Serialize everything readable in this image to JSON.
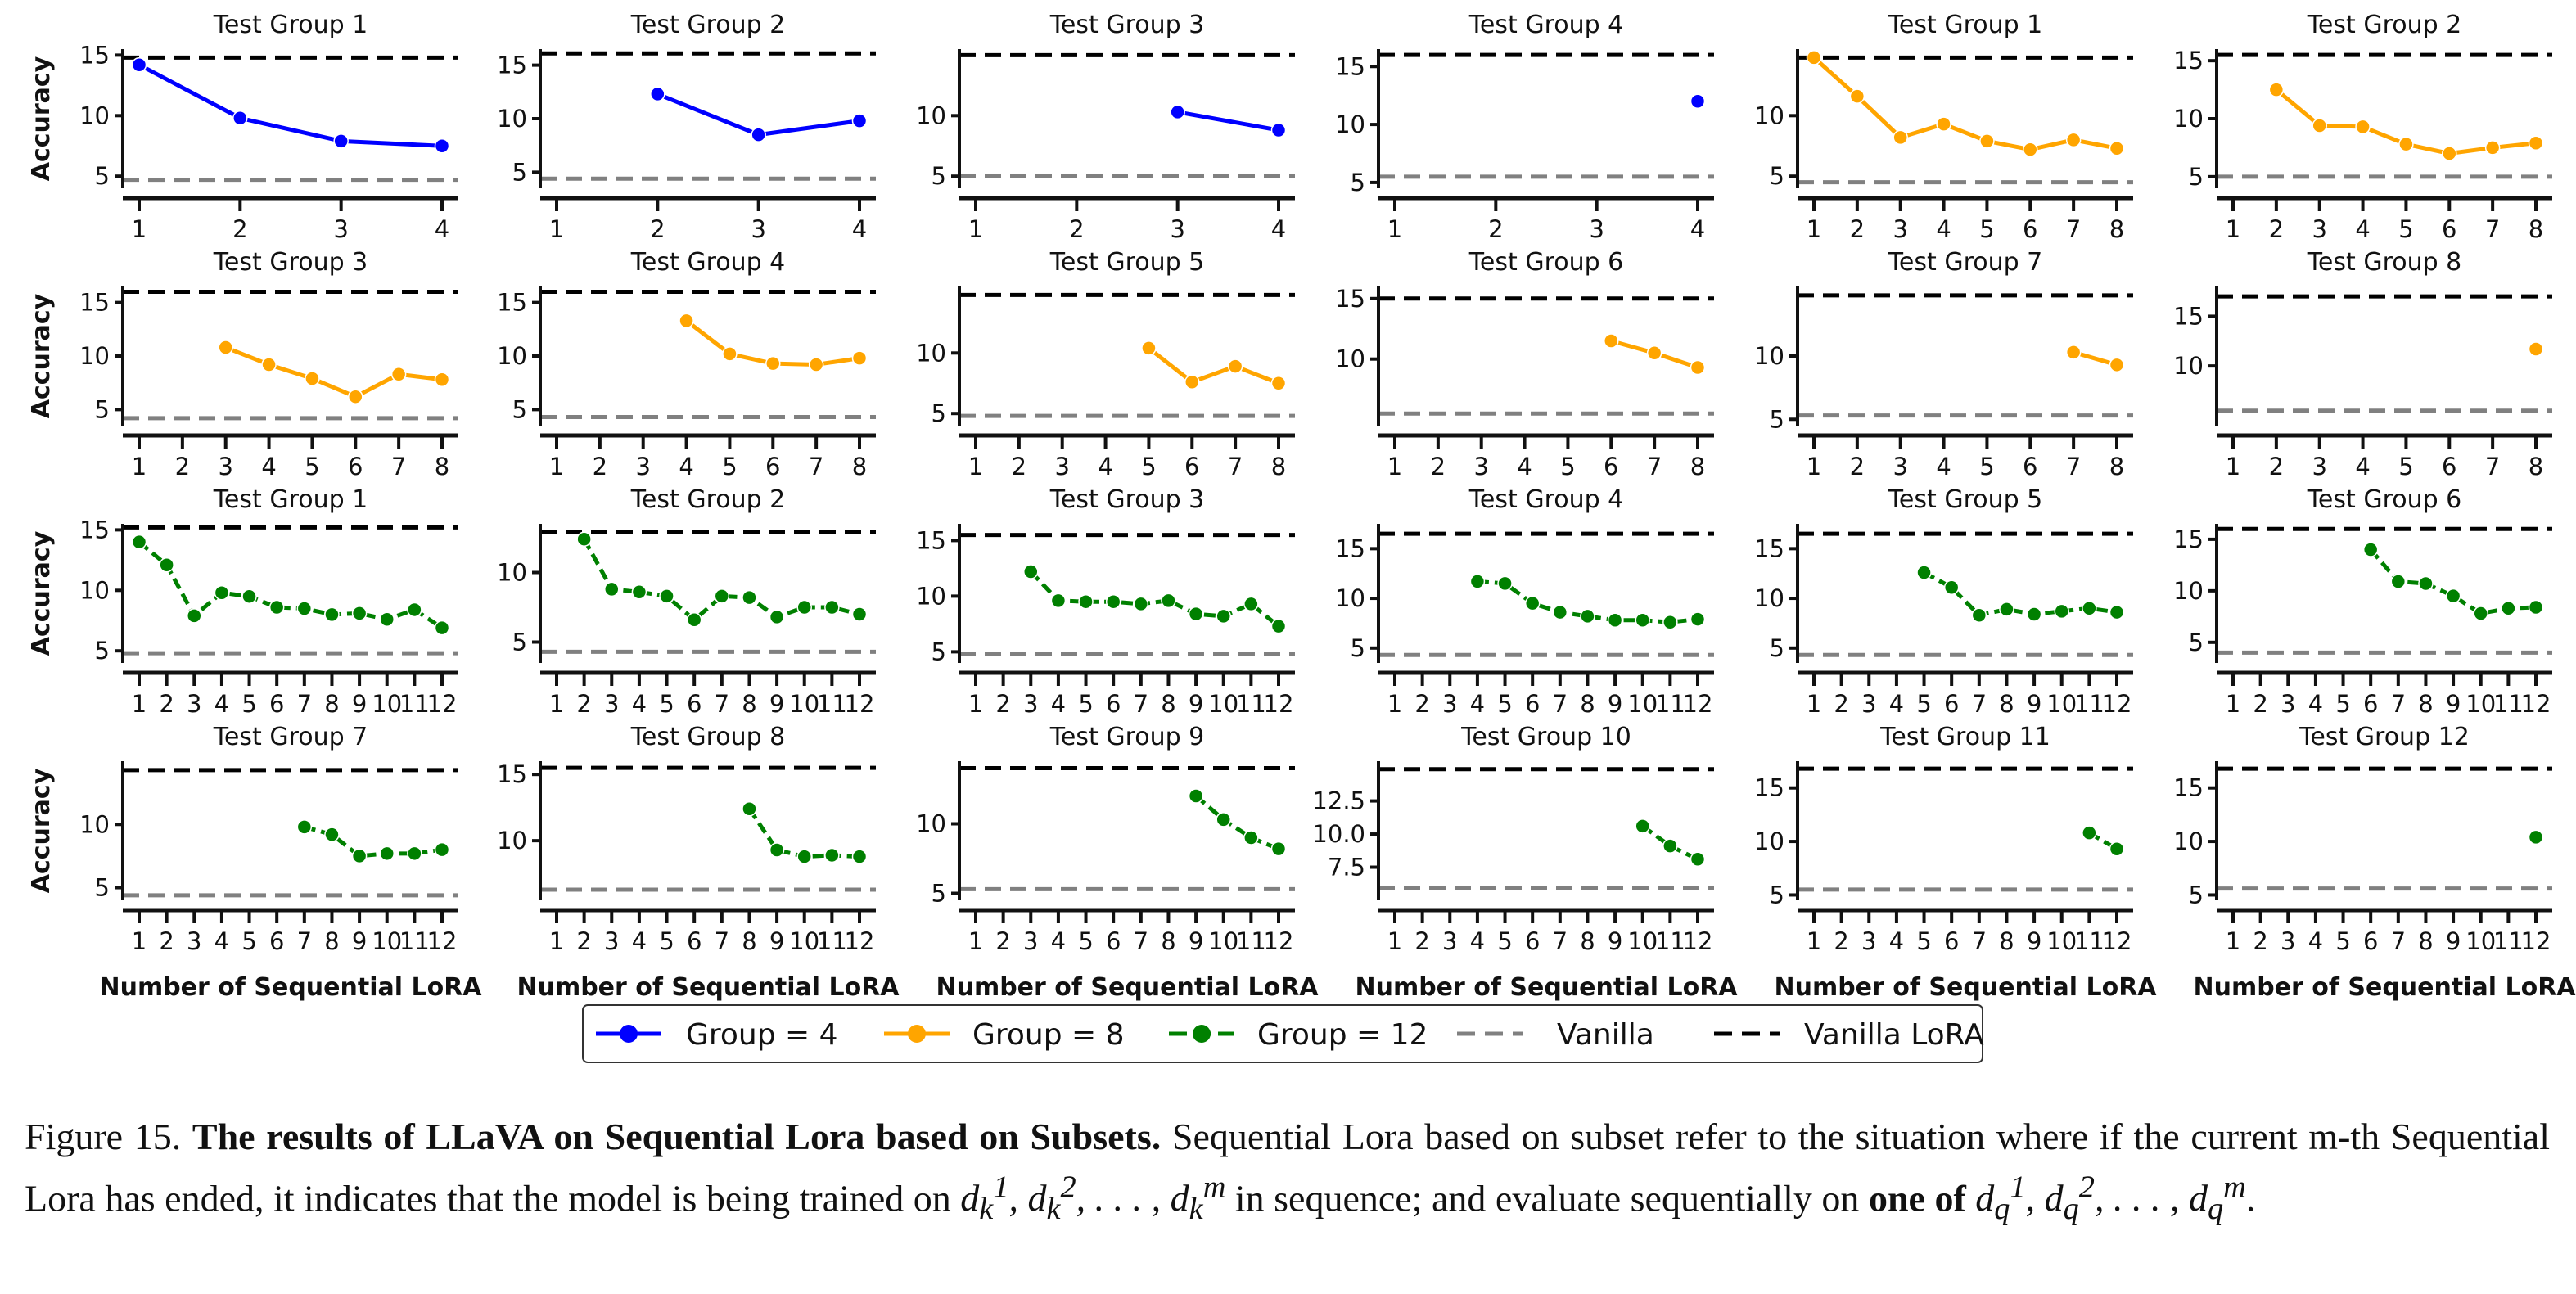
{
  "chart_data": [
    {
      "type": "line",
      "title": "Test Group 1",
      "ylabel": "Accuracy",
      "xlabel": "",
      "ylim": [
        4,
        15.5
      ],
      "yticks": [
        5,
        10,
        15
      ],
      "x_ticks": [
        1,
        2,
        3,
        4
      ],
      "vanilla": 4.7,
      "vanilla_lora": 14.8,
      "series": [
        {
          "name": "Group = 4",
          "x": [
            1,
            2,
            3,
            4
          ],
          "values": [
            14.2,
            9.8,
            7.9,
            7.5
          ]
        }
      ]
    },
    {
      "type": "line",
      "title": "Test Group 2",
      "ylabel": "",
      "xlabel": "",
      "ylim": [
        3.5,
        16.5
      ],
      "yticks": [
        5,
        10,
        15
      ],
      "x_ticks": [
        1,
        2,
        3,
        4
      ],
      "vanilla": 4.4,
      "vanilla_lora": 16.1,
      "series": [
        {
          "name": "Group = 4",
          "x": [
            2,
            3,
            4
          ],
          "values": [
            12.3,
            8.5,
            9.8
          ]
        }
      ]
    },
    {
      "type": "line",
      "title": "Test Group 3",
      "ylabel": "",
      "xlabel": "",
      "ylim": [
        4,
        15.5
      ],
      "yticks": [
        5,
        10
      ],
      "x_ticks": [
        1,
        2,
        3,
        4
      ],
      "vanilla": 5.0,
      "vanilla_lora": 15.0,
      "series": [
        {
          "name": "Group = 4",
          "x": [
            3,
            4
          ],
          "values": [
            10.3,
            8.8
          ]
        }
      ]
    },
    {
      "type": "line",
      "title": "Test Group 4",
      "ylabel": "",
      "xlabel": "",
      "ylim": [
        4.5,
        16.5
      ],
      "yticks": [
        5,
        10,
        15
      ],
      "x_ticks": [
        1,
        2,
        3,
        4
      ],
      "vanilla": 5.5,
      "vanilla_lora": 16.0,
      "series": [
        {
          "name": "Group = 4",
          "x": [
            4
          ],
          "values": [
            12.0
          ]
        }
      ]
    },
    {
      "type": "line",
      "title": "Test Group 1",
      "ylabel": "",
      "xlabel": "",
      "ylim": [
        4,
        15.5
      ],
      "yticks": [
        5,
        10
      ],
      "x_ticks": [
        1,
        2,
        3,
        4,
        5,
        6,
        7,
        8
      ],
      "vanilla": 4.5,
      "vanilla_lora": 14.8,
      "series": [
        {
          "name": "Group = 8",
          "x": [
            1,
            2,
            3,
            4,
            5,
            6,
            7,
            8
          ],
          "values": [
            14.8,
            11.6,
            8.2,
            9.3,
            7.9,
            7.2,
            8.0,
            7.3
          ]
        }
      ]
    },
    {
      "type": "line",
      "title": "Test Group 2",
      "ylabel": "",
      "xlabel": "",
      "ylim": [
        4,
        16
      ],
      "yticks": [
        5,
        10,
        15
      ],
      "x_ticks": [
        1,
        2,
        3,
        4,
        5,
        6,
        7,
        8
      ],
      "vanilla": 5.0,
      "vanilla_lora": 15.5,
      "series": [
        {
          "name": "Group = 8",
          "x": [
            2,
            3,
            4,
            5,
            6,
            7,
            8
          ],
          "values": [
            12.5,
            9.4,
            9.3,
            7.8,
            7.0,
            7.5,
            7.9
          ]
        }
      ]
    },
    {
      "type": "line",
      "title": "Test Group 3",
      "ylabel": "Accuracy",
      "xlabel": "",
      "ylim": [
        3.5,
        16.5
      ],
      "yticks": [
        5,
        10,
        15
      ],
      "x_ticks": [
        1,
        2,
        3,
        4,
        5,
        6,
        7,
        8
      ],
      "vanilla": 4.2,
      "vanilla_lora": 16.0,
      "series": [
        {
          "name": "Group = 8",
          "x": [
            3,
            4,
            5,
            6,
            7,
            8
          ],
          "values": [
            10.8,
            9.2,
            7.9,
            6.2,
            8.3,
            7.8
          ]
        }
      ]
    },
    {
      "type": "line",
      "title": "Test Group 4",
      "ylabel": "",
      "xlabel": "",
      "ylim": [
        3.5,
        16.5
      ],
      "yticks": [
        5,
        10,
        15
      ],
      "x_ticks": [
        1,
        2,
        3,
        4,
        5,
        6,
        7,
        8
      ],
      "vanilla": 4.3,
      "vanilla_lora": 16.0,
      "series": [
        {
          "name": "Group = 8",
          "x": [
            4,
            5,
            6,
            7,
            8
          ],
          "values": [
            13.3,
            10.2,
            9.3,
            9.2,
            9.8
          ]
        }
      ]
    },
    {
      "type": "line",
      "title": "Test Group 5",
      "ylabel": "",
      "xlabel": "",
      "ylim": [
        4,
        15.5
      ],
      "yticks": [
        5,
        10
      ],
      "x_ticks": [
        1,
        2,
        3,
        4,
        5,
        6,
        7,
        8
      ],
      "vanilla": 4.8,
      "vanilla_lora": 14.8,
      "series": [
        {
          "name": "Group = 8",
          "x": [
            5,
            6,
            7,
            8
          ],
          "values": [
            10.4,
            7.6,
            8.9,
            7.5
          ]
        }
      ]
    },
    {
      "type": "line",
      "title": "Test Group 6",
      "ylabel": "",
      "xlabel": "",
      "ylim": [
        4.5,
        16
      ],
      "yticks": [
        10,
        15
      ],
      "x_ticks": [
        1,
        2,
        3,
        4,
        5,
        6,
        7,
        8
      ],
      "vanilla": 5.5,
      "vanilla_lora": 15.0,
      "series": [
        {
          "name": "Group = 8",
          "x": [
            6,
            7,
            8
          ],
          "values": [
            11.5,
            10.5,
            9.3
          ]
        }
      ]
    },
    {
      "type": "line",
      "title": "Test Group 7",
      "ylabel": "",
      "xlabel": "",
      "ylim": [
        4.5,
        15.5
      ],
      "yticks": [
        5,
        10
      ],
      "x_ticks": [
        1,
        2,
        3,
        4,
        5,
        6,
        7,
        8
      ],
      "vanilla": 5.3,
      "vanilla_lora": 14.8,
      "series": [
        {
          "name": "Group = 8",
          "x": [
            7,
            8
          ],
          "values": [
            10.3,
            9.3
          ]
        }
      ]
    },
    {
      "type": "line",
      "title": "Test Group 8",
      "ylabel": "",
      "xlabel": "",
      "ylim": [
        4,
        18
      ],
      "yticks": [
        10,
        15
      ],
      "x_ticks": [
        1,
        2,
        3,
        4,
        5,
        6,
        7,
        8
      ],
      "vanilla": 5.5,
      "vanilla_lora": 17.0,
      "series": [
        {
          "name": "Group = 8",
          "x": [
            8
          ],
          "values": [
            11.7
          ]
        }
      ]
    },
    {
      "type": "line",
      "title": "Test Group 1",
      "ylabel": "Accuracy",
      "xlabel": "",
      "ylim": [
        4,
        15.5
      ],
      "yticks": [
        5,
        10,
        15
      ],
      "x_ticks": [
        1,
        2,
        3,
        4,
        5,
        6,
        7,
        8,
        9,
        10,
        11,
        12
      ],
      "vanilla": 4.8,
      "vanilla_lora": 15.2,
      "series": [
        {
          "name": "Group = 12",
          "x": [
            1,
            2,
            3,
            4,
            5,
            6,
            7,
            8,
            9,
            10,
            11,
            12
          ],
          "values": [
            14.0,
            12.1,
            7.9,
            9.8,
            9.5,
            8.6,
            8.5,
            8.0,
            8.1,
            7.6,
            8.4,
            6.9
          ]
        }
      ]
    },
    {
      "type": "line",
      "title": "Test Group 2",
      "ylabel": "",
      "xlabel": "",
      "ylim": [
        3.5,
        13.5
      ],
      "yticks": [
        5,
        10
      ],
      "x_ticks": [
        1,
        2,
        3,
        4,
        5,
        6,
        7,
        8,
        9,
        10,
        11,
        12
      ],
      "vanilla": 4.3,
      "vanilla_lora": 12.9,
      "series": [
        {
          "name": "Group = 12",
          "x": [
            2,
            3,
            4,
            5,
            6,
            7,
            8,
            9,
            10,
            11,
            12
          ],
          "values": [
            12.4,
            8.8,
            8.6,
            8.3,
            6.6,
            8.3,
            8.2,
            6.8,
            7.5,
            7.5,
            7.0
          ]
        }
      ]
    },
    {
      "type": "line",
      "title": "Test Group 3",
      "ylabel": "",
      "xlabel": "",
      "ylim": [
        4,
        16.5
      ],
      "yticks": [
        5,
        10,
        15
      ],
      "x_ticks": [
        1,
        2,
        3,
        4,
        5,
        6,
        7,
        8,
        9,
        10,
        11,
        12
      ],
      "vanilla": 4.8,
      "vanilla_lora": 15.5,
      "series": [
        {
          "name": "Group = 12",
          "x": [
            3,
            4,
            5,
            6,
            7,
            8,
            9,
            10,
            11,
            12
          ],
          "values": [
            12.2,
            9.6,
            9.5,
            9.5,
            9.3,
            9.6,
            8.4,
            8.2,
            9.3,
            7.3
          ]
        }
      ]
    },
    {
      "type": "line",
      "title": "Test Group 4",
      "ylabel": "",
      "xlabel": "",
      "ylim": [
        3.5,
        17.5
      ],
      "yticks": [
        5,
        10,
        15
      ],
      "x_ticks": [
        1,
        2,
        3,
        4,
        5,
        6,
        7,
        8,
        9,
        10,
        11,
        12
      ],
      "vanilla": 4.3,
      "vanilla_lora": 16.5,
      "series": [
        {
          "name": "Group = 12",
          "x": [
            4,
            5,
            6,
            7,
            8,
            9,
            10,
            11,
            12
          ],
          "values": [
            11.7,
            11.5,
            9.5,
            8.6,
            8.2,
            7.8,
            7.8,
            7.6,
            7.9
          ]
        }
      ]
    },
    {
      "type": "line",
      "title": "Test Group 5",
      "ylabel": "",
      "xlabel": "",
      "ylim": [
        3.5,
        17.5
      ],
      "yticks": [
        5,
        10,
        15
      ],
      "x_ticks": [
        1,
        2,
        3,
        4,
        5,
        6,
        7,
        8,
        9,
        10,
        11,
        12
      ],
      "vanilla": 4.3,
      "vanilla_lora": 16.5,
      "series": [
        {
          "name": "Group = 12",
          "x": [
            5,
            6,
            7,
            8,
            9,
            10,
            11,
            12
          ],
          "values": [
            12.6,
            11.1,
            8.3,
            8.9,
            8.4,
            8.7,
            9.0,
            8.6
          ]
        }
      ]
    },
    {
      "type": "line",
      "title": "Test Group 6",
      "ylabel": "",
      "xlabel": "",
      "ylim": [
        3,
        16.5
      ],
      "yticks": [
        5,
        10,
        15
      ],
      "x_ticks": [
        1,
        2,
        3,
        4,
        5,
        6,
        7,
        8,
        9,
        10,
        11,
        12
      ],
      "vanilla": 4.0,
      "vanilla_lora": 16.0,
      "series": [
        {
          "name": "Group = 12",
          "x": [
            6,
            7,
            8,
            9,
            10,
            11,
            12
          ],
          "values": [
            14.0,
            10.9,
            10.7,
            9.5,
            7.8,
            8.3,
            8.4
          ]
        }
      ]
    },
    {
      "type": "line",
      "title": "Test Group 7",
      "ylabel": "Accuracy",
      "xlabel": "Number of Sequential LoRA",
      "ylim": [
        4,
        15
      ],
      "yticks": [
        5,
        10
      ],
      "x_ticks": [
        1,
        2,
        3,
        4,
        5,
        6,
        7,
        8,
        9,
        10,
        11,
        12
      ],
      "vanilla": 4.4,
      "vanilla_lora": 14.3,
      "series": [
        {
          "name": "Group = 12",
          "x": [
            7,
            8,
            9,
            10,
            11,
            12
          ],
          "values": [
            9.8,
            9.2,
            7.5,
            7.7,
            7.7,
            8.0
          ]
        }
      ]
    },
    {
      "type": "line",
      "title": "Test Group 8",
      "ylabel": "",
      "xlabel": "Number of Sequential LoRA",
      "ylim": [
        5.5,
        16
      ],
      "yticks": [
        10,
        15
      ],
      "x_ticks": [
        1,
        2,
        3,
        4,
        5,
        6,
        7,
        8,
        9,
        10,
        11,
        12
      ],
      "vanilla": 6.3,
      "vanilla_lora": 15.5,
      "series": [
        {
          "name": "Group = 12",
          "x": [
            8,
            9,
            10,
            11,
            12
          ],
          "values": [
            12.4,
            9.3,
            8.8,
            8.9,
            8.8
          ]
        }
      ]
    },
    {
      "type": "line",
      "title": "Test Group 9",
      "ylabel": "",
      "xlabel": "Number of Sequential LoRA",
      "ylim": [
        4.5,
        14.5
      ],
      "yticks": [
        5,
        10
      ],
      "x_ticks": [
        1,
        2,
        3,
        4,
        5,
        6,
        7,
        8,
        9,
        10,
        11,
        12
      ],
      "vanilla": 5.3,
      "vanilla_lora": 14.0,
      "series": [
        {
          "name": "Group = 12",
          "x": [
            9,
            10,
            11,
            12
          ],
          "values": [
            12.0,
            10.3,
            9.0,
            8.2
          ]
        }
      ]
    },
    {
      "type": "line",
      "title": "Test Group 10",
      "ylabel": "",
      "xlabel": "Number of Sequential LoRA",
      "ylim": [
        5,
        15.5
      ],
      "yticks": [
        7.5,
        10.0,
        12.5
      ],
      "ytick_labels": [
        "7.5",
        "10.0",
        "12.5"
      ],
      "x_ticks": [
        1,
        2,
        3,
        4,
        5,
        6,
        7,
        8,
        9,
        10,
        11,
        12
      ],
      "vanilla": 5.9,
      "vanilla_lora": 14.9,
      "series": [
        {
          "name": "Group = 12",
          "x": [
            10,
            11,
            12
          ],
          "values": [
            10.6,
            9.1,
            8.1
          ]
        }
      ]
    },
    {
      "type": "line",
      "title": "Test Group 11",
      "ylabel": "",
      "xlabel": "Number of Sequential LoRA",
      "ylim": [
        4.5,
        17.5
      ],
      "yticks": [
        5,
        10,
        15
      ],
      "x_ticks": [
        1,
        2,
        3,
        4,
        5,
        6,
        7,
        8,
        9,
        10,
        11,
        12
      ],
      "vanilla": 5.5,
      "vanilla_lora": 16.8,
      "series": [
        {
          "name": "Group = 12",
          "x": [
            11,
            12
          ],
          "values": [
            10.8,
            9.3
          ]
        }
      ]
    },
    {
      "type": "line",
      "title": "Test Group 12",
      "ylabel": "",
      "xlabel": "Number of Sequential LoRA",
      "ylim": [
        4.5,
        17.5
      ],
      "yticks": [
        5,
        10,
        15
      ],
      "x_ticks": [
        1,
        2,
        3,
        4,
        5,
        6,
        7,
        8,
        9,
        10,
        11,
        12
      ],
      "vanilla": 5.6,
      "vanilla_lora": 16.8,
      "series": [
        {
          "name": "Group = 12",
          "x": [
            12
          ],
          "values": [
            10.4
          ]
        }
      ]
    }
  ],
  "legend": {
    "position": "bottom-center",
    "items": [
      {
        "label": "Group = 4",
        "kind": "line-marker",
        "color": "#0000ff"
      },
      {
        "label": "Group = 8",
        "kind": "line-marker",
        "color": "#ffa500"
      },
      {
        "label": "Group = 12",
        "kind": "dashed-marker",
        "color": "#008000"
      },
      {
        "label": "Vanilla",
        "kind": "dashed",
        "color": "#808080"
      },
      {
        "label": "Vanilla LoRA",
        "kind": "dashed",
        "color": "#000000"
      }
    ]
  },
  "colors": {
    "group4": "#0000ff",
    "group8": "#ffa500",
    "group12": "#008000",
    "vanilla": "#808080",
    "vanilla_lora": "#000000"
  },
  "caption": {
    "label": "Figure 15.",
    "title": "The results of LLaVA on Sequential Lora based on Subsets.",
    "text_1": "Sequential Lora based on subset refer to the situation where if the current m-th Sequential Lora has ended, it indicates that the model is being trained on",
    "text_2": "in sequence; and evaluate sequentially on",
    "bold_phrase": "one of",
    "math_k": "d_k^1, d_k^2, ..., d_k^m",
    "math_q": "d_q^1, d_q^2, ..., d_q^m"
  }
}
